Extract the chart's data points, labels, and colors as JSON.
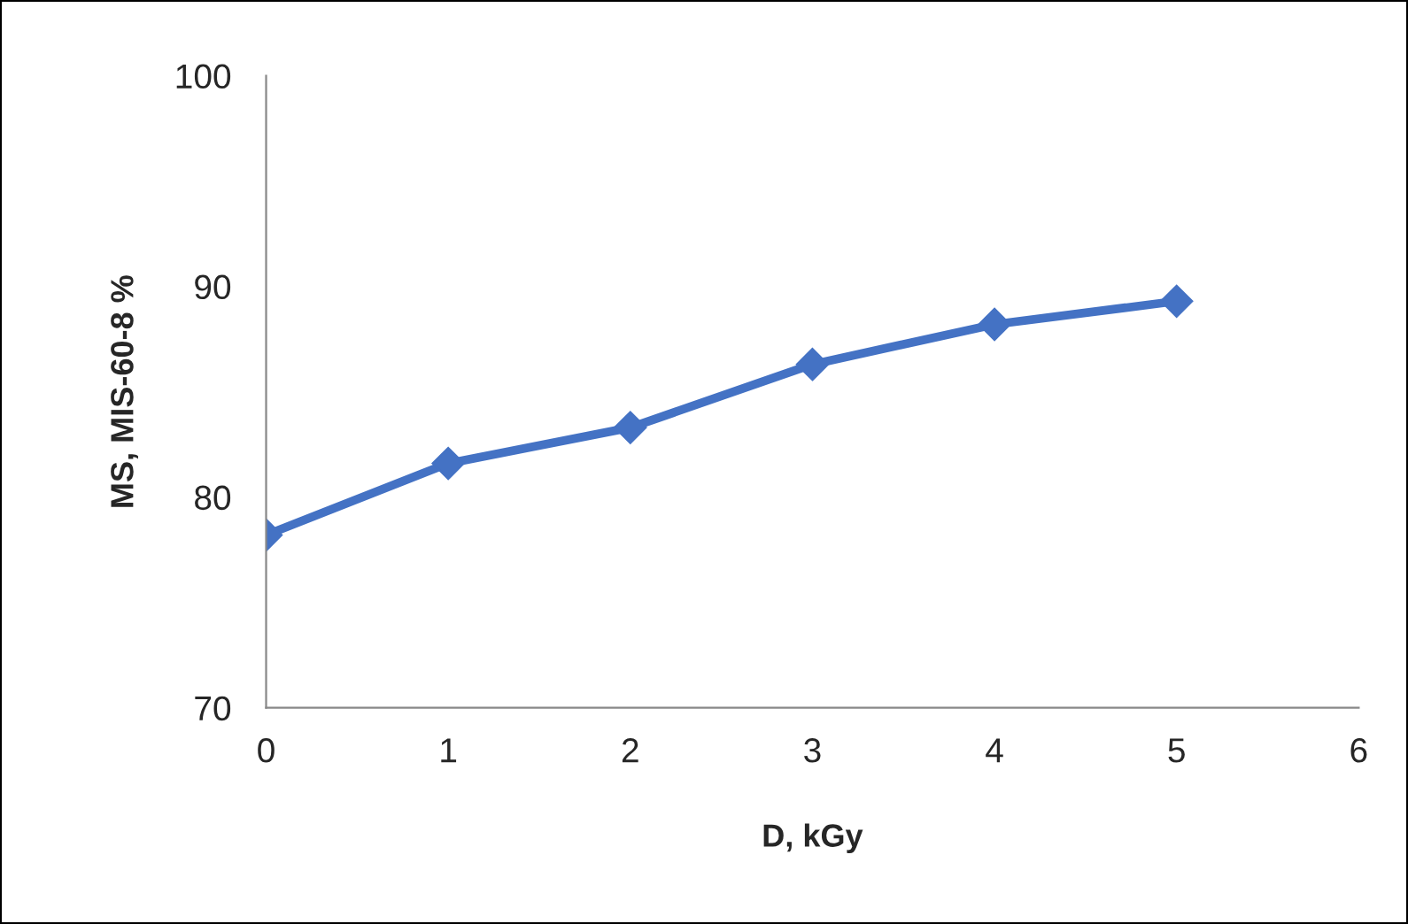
{
  "chart_data": {
    "type": "line",
    "xlabel": "D, kGy",
    "ylabel": "MS, MIS-60-8 %",
    "x": [
      0,
      1,
      2,
      3,
      4,
      5
    ],
    "series": [
      {
        "color": "#4472c4",
        "values": [
          78.2,
          81.6,
          83.3,
          86.3,
          88.2,
          89.3
        ]
      }
    ],
    "xlim": [
      0,
      6
    ],
    "xticks": [
      0,
      1,
      2,
      3,
      4,
      5,
      6
    ],
    "ylim": [
      70,
      100
    ],
    "yticks": [
      70,
      80,
      90,
      100
    ],
    "grid": false,
    "legend": false,
    "marker": "diamond",
    "line_style": "solid"
  }
}
